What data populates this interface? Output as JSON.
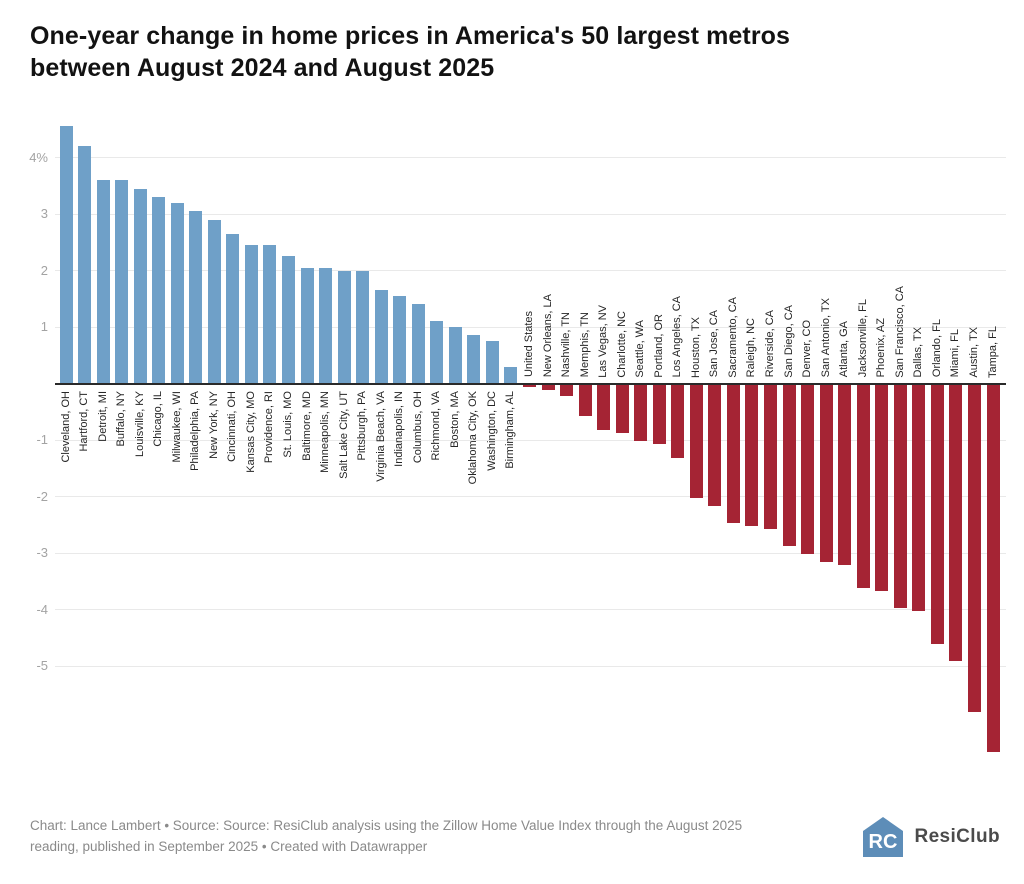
{
  "header": {
    "title_line1": "One-year change in home prices in America's 50 largest metros",
    "title_line2": "between August 2024 and August 2025"
  },
  "chart_data": {
    "type": "bar",
    "title": "One-year change in home prices in America's 50 largest metros between August 2024 and August 2025",
    "xlabel": "",
    "ylabel": "",
    "unit": "%",
    "ylim": [
      -6.6,
      4.6
    ],
    "grid": true,
    "legend_position": "none",
    "positive_color": "#6fa0c8",
    "negative_color": "#a52434",
    "y_ticks": [
      {
        "label": "4%",
        "value": 4
      },
      {
        "label": "3",
        "value": 3
      },
      {
        "label": "2",
        "value": 2
      },
      {
        "label": "1",
        "value": 1
      },
      {
        "label": "-1",
        "value": -1
      },
      {
        "label": "-2",
        "value": -2
      },
      {
        "label": "-3",
        "value": -3
      },
      {
        "label": "-4",
        "value": -4
      },
      {
        "label": "-5",
        "value": -5
      }
    ],
    "entries": [
      {
        "label": "Cleveland, OH",
        "value": 4.55
      },
      {
        "label": "Hartford, CT",
        "value": 4.2
      },
      {
        "label": "Detroit, MI",
        "value": 3.6
      },
      {
        "label": "Buffalo, NY",
        "value": 3.6
      },
      {
        "label": "Louisville, KY",
        "value": 3.45
      },
      {
        "label": "Chicago, IL",
        "value": 3.3
      },
      {
        "label": "Milwaukee, WI",
        "value": 3.2
      },
      {
        "label": "Philadelphia, PA",
        "value": 3.05
      },
      {
        "label": "New York, NY",
        "value": 2.9
      },
      {
        "label": "Cincinnati, OH",
        "value": 2.65
      },
      {
        "label": "Kansas City, MO",
        "value": 2.45
      },
      {
        "label": "Providence, RI",
        "value": 2.45
      },
      {
        "label": "St. Louis, MO",
        "value": 2.25
      },
      {
        "label": "Baltimore, MD",
        "value": 2.05
      },
      {
        "label": "Minneapolis, MN",
        "value": 2.05
      },
      {
        "label": "Salt Lake City, UT",
        "value": 2.0
      },
      {
        "label": "Pittsburgh, PA",
        "value": 2.0
      },
      {
        "label": "Virginia Beach, VA",
        "value": 1.65
      },
      {
        "label": "Indianapolis, IN",
        "value": 1.55
      },
      {
        "label": "Columbus, OH",
        "value": 1.4
      },
      {
        "label": "Richmond, VA",
        "value": 1.1
      },
      {
        "label": "Boston, MA",
        "value": 1.0
      },
      {
        "label": "Oklahoma City, OK",
        "value": 0.85
      },
      {
        "label": "Washington, DC",
        "value": 0.75
      },
      {
        "label": "Birmingham, AL",
        "value": 0.3
      },
      {
        "label": "United States",
        "value": -0.05
      },
      {
        "label": "New Orleans, LA",
        "value": -0.1
      },
      {
        "label": "Nashville, TN",
        "value": -0.2
      },
      {
        "label": "Memphis, TN",
        "value": -0.55
      },
      {
        "label": "Las Vegas, NV",
        "value": -0.8
      },
      {
        "label": "Charlotte, NC",
        "value": -0.85
      },
      {
        "label": "Seattle, WA",
        "value": -1.0
      },
      {
        "label": "Portland, OR",
        "value": -1.05
      },
      {
        "label": "Los Angeles, CA",
        "value": -1.3
      },
      {
        "label": "Houston, TX",
        "value": -2.0
      },
      {
        "label": "San Jose, CA",
        "value": -2.15
      },
      {
        "label": "Sacramento, CA",
        "value": -2.45
      },
      {
        "label": "Raleigh, NC",
        "value": -2.5
      },
      {
        "label": "Riverside, CA",
        "value": -2.55
      },
      {
        "label": "San Diego, CA",
        "value": -2.85
      },
      {
        "label": "Denver, CO",
        "value": -3.0
      },
      {
        "label": "San Antonio, TX",
        "value": -3.15
      },
      {
        "label": "Atlanta, GA",
        "value": -3.2
      },
      {
        "label": "Jacksonville, FL",
        "value": -3.6
      },
      {
        "label": "Phoenix, AZ",
        "value": -3.65
      },
      {
        "label": "San Francisco, CA",
        "value": -3.95
      },
      {
        "label": "Dallas, TX",
        "value": -4.0
      },
      {
        "label": "Orlando, FL",
        "value": -4.6
      },
      {
        "label": "Miami, FL",
        "value": -4.9
      },
      {
        "label": "Austin, TX",
        "value": -5.8
      },
      {
        "label": "Tampa, FL",
        "value": -6.5
      }
    ]
  },
  "footer": {
    "credit_line1": "Chart: Lance Lambert • Source: Source: ResiClub analysis using the Zillow Home Value Index through the August 2025",
    "credit_line2": "reading, published in September 2025 • Created with Datawrapper",
    "logo_mark_letters": "RC",
    "logo_text": "ResiClub"
  }
}
